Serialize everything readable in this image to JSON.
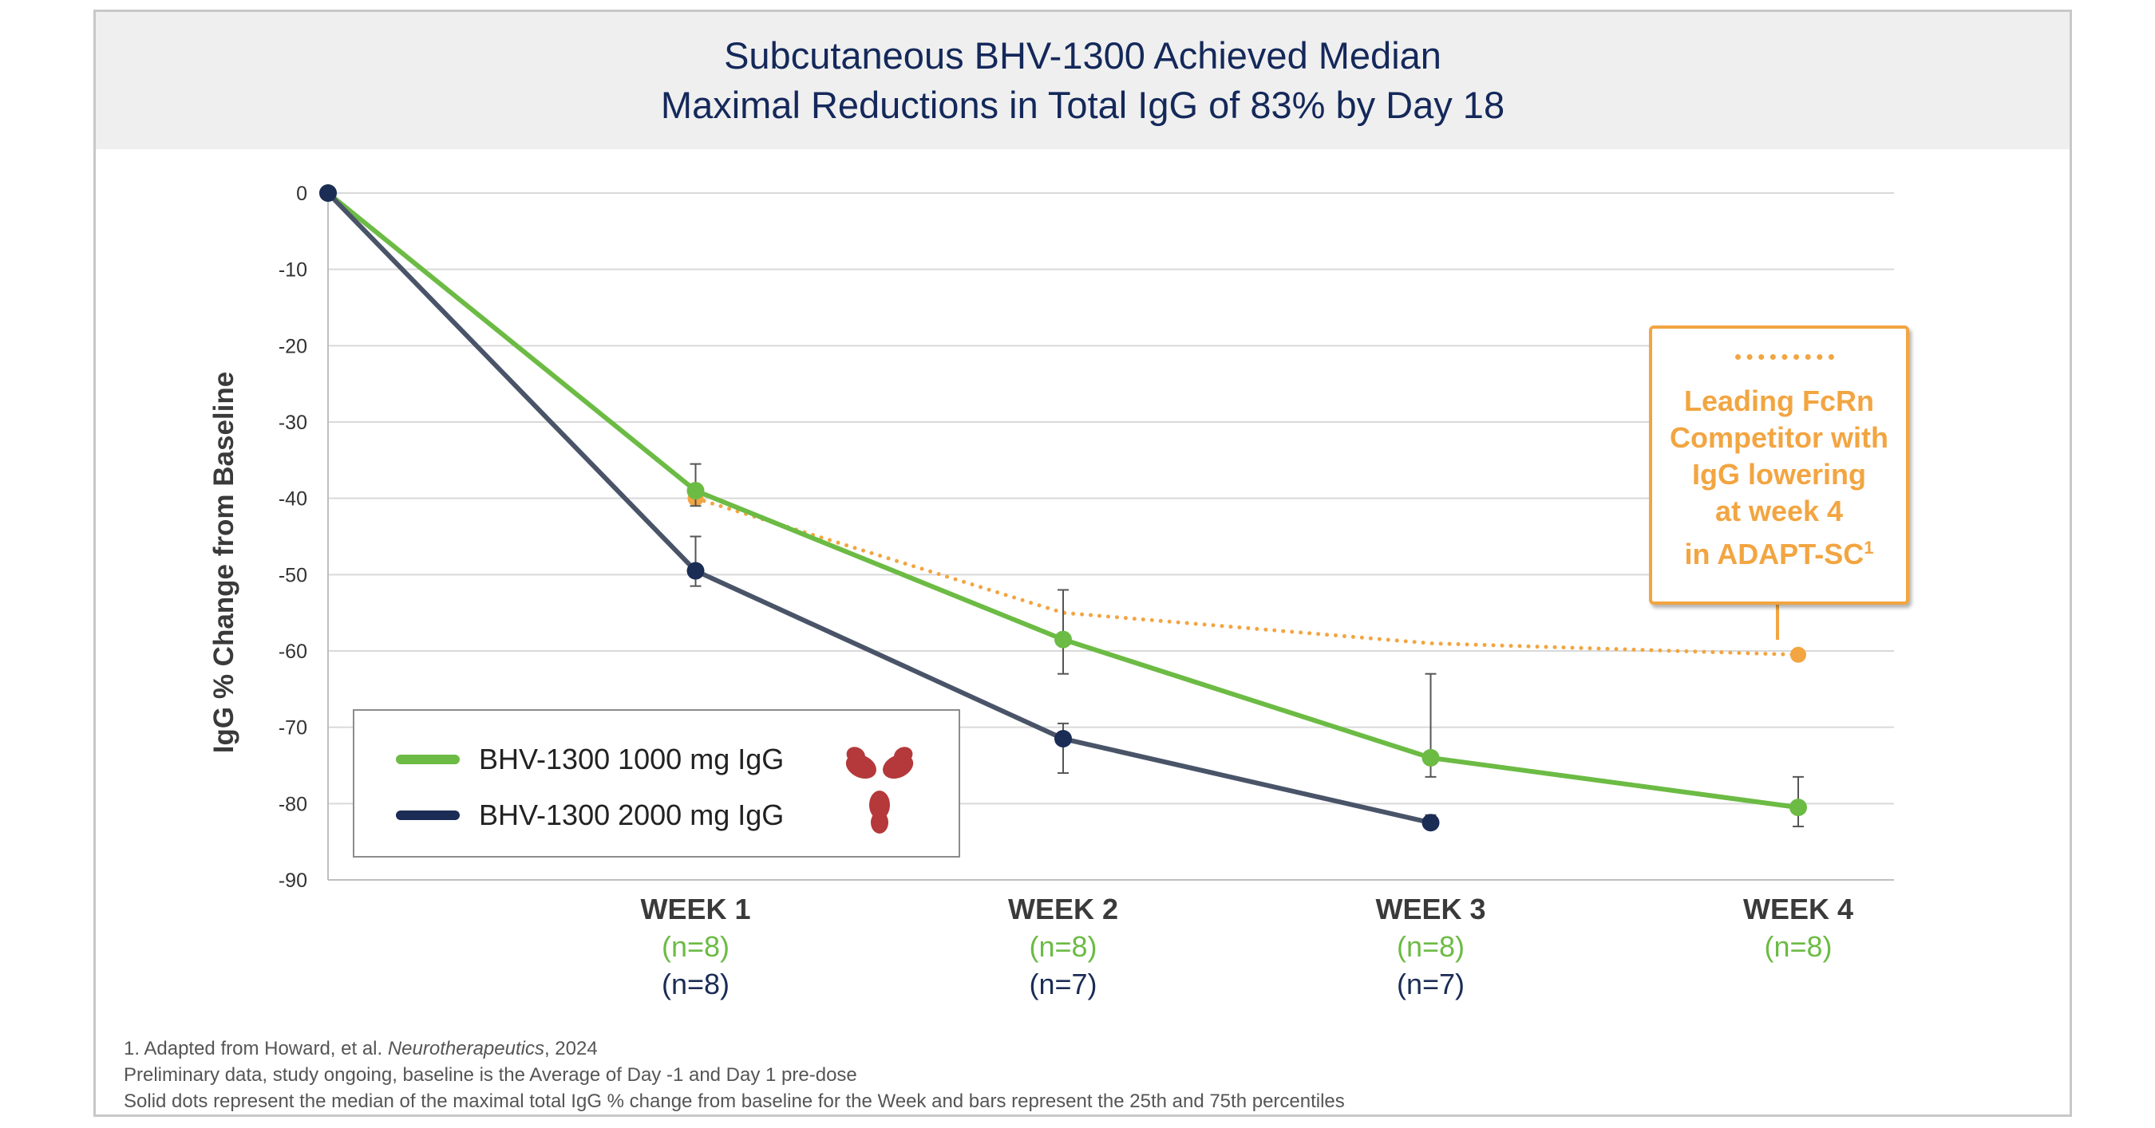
{
  "title": {
    "line1": "Subcutaneous BHV-1300 Achieved Median",
    "line2": "Maximal Reductions in Total IgG of 83% by Day 18"
  },
  "colors": {
    "green": "#6cbb44",
    "navy": "#1b2c55",
    "navy_line": "#4a5468",
    "orange": "#f2a541",
    "grid": "#d9d9d9",
    "axis": "#bfbfbf",
    "error_bar": "#555555",
    "antibody": "#b5393a"
  },
  "chart_data": {
    "type": "line",
    "title": "Subcutaneous BHV-1300 Achieved Median Maximal Reductions in Total IgG of 83% by Day 18",
    "ylabel": "IgG % Change from Baseline",
    "xlabel": "",
    "ylim": [
      -90,
      0
    ],
    "yticks": [
      "0",
      "-10",
      "-20",
      "-30",
      "-40",
      "-50",
      "-60",
      "-70",
      "-80",
      "-90"
    ],
    "x": [
      0,
      1,
      2,
      3,
      4
    ],
    "grid": true,
    "legend_position": "bottom-left",
    "categories": [
      {
        "label": "WEEK 1",
        "n_green": "(n=8)",
        "n_navy": "(n=8)"
      },
      {
        "label": "WEEK 2",
        "n_green": "(n=8)",
        "n_navy": "(n=7)"
      },
      {
        "label": "WEEK 3",
        "n_green": "(n=8)",
        "n_navy": "(n=7)"
      },
      {
        "label": "WEEK 4",
        "n_green": "(n=8)",
        "n_navy": ""
      }
    ],
    "series": [
      {
        "name": "BHV-1300 1000 mg IgG",
        "color_key": "green",
        "style": "solid",
        "x": [
          0,
          1,
          2,
          3,
          4
        ],
        "values": [
          0,
          -39,
          -58.5,
          -74,
          -80.5
        ],
        "err_low": [
          null,
          -41,
          -63,
          -76.5,
          -83
        ],
        "err_high": [
          null,
          -35.5,
          -52,
          -63,
          -76.5
        ]
      },
      {
        "name": "BHV-1300 2000 mg IgG",
        "color_key": "navy",
        "style": "solid",
        "x": [
          0,
          1,
          2,
          3
        ],
        "values": [
          0,
          -49.5,
          -71.5,
          -82.5
        ],
        "err_low": [
          null,
          -51.5,
          -76,
          -83
        ],
        "err_high": [
          null,
          -45,
          -69.5,
          -81.5
        ]
      },
      {
        "name": "Leading FcRn Competitor",
        "color_key": "orange",
        "style": "dotted",
        "x": [
          1,
          2,
          3,
          4
        ],
        "values": [
          -40,
          -55,
          -59,
          -60.5
        ],
        "marker_points": [
          1,
          4
        ]
      }
    ],
    "callout": {
      "lines": [
        "Leading FcRn",
        "Competitor with",
        "IgG lowering",
        "at week 4",
        "in ADAPT-SC"
      ],
      "superscript": "1"
    }
  },
  "legend": {
    "items": [
      {
        "label": "BHV-1300 1000 mg IgG"
      },
      {
        "label": "BHV-1300 2000 mg IgG"
      }
    ],
    "image_icon": "antibody-icon"
  },
  "footnotes": {
    "ref_prefix": "1. Adapted from Howard, et al. ",
    "ref_journal": "Neurotherapeutics",
    "ref_suffix": ", 2024",
    "line2": "Preliminary data, study ongoing, baseline is the Average of Day -1 and Day 1 pre-dose",
    "line3": "Solid dots represent the median of the maximal total IgG % change from baseline for the Week and bars represent the 25th and 75th percentiles"
  }
}
